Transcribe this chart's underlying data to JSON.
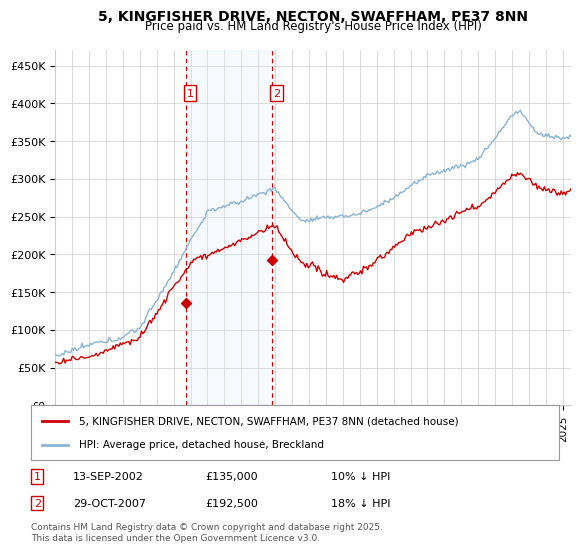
{
  "title": "5, KINGFISHER DRIVE, NECTON, SWAFFHAM, PE37 8NN",
  "subtitle": "Price paid vs. HM Land Registry's House Price Index (HPI)",
  "ylim": [
    0,
    470000
  ],
  "yticks": [
    0,
    50000,
    100000,
    150000,
    200000,
    250000,
    300000,
    350000,
    400000,
    450000
  ],
  "ytick_labels": [
    "£0",
    "£50K",
    "£100K",
    "£150K",
    "£200K",
    "£250K",
    "£300K",
    "£350K",
    "£400K",
    "£450K"
  ],
  "transaction1_date": "13-SEP-2002",
  "transaction1_price": 135000,
  "transaction1_hpi_diff": "10% ↓ HPI",
  "transaction2_date": "29-OCT-2007",
  "transaction2_price": 192500,
  "transaction2_hpi_diff": "18% ↓ HPI",
  "legend_line1": "5, KINGFISHER DRIVE, NECTON, SWAFFHAM, PE37 8NN (detached house)",
  "legend_line2": "HPI: Average price, detached house, Breckland",
  "footer": "Contains HM Land Registry data © Crown copyright and database right 2025.\nThis data is licensed under the Open Government Licence v3.0.",
  "hpi_color": "#8ab4d4",
  "price_color": "#cc0000",
  "shade_color": "#ddeeff",
  "vline_color": "#cc0000",
  "background_color": "#ffffff",
  "grid_color": "#cccccc",
  "t1_year": 2002.71,
  "t2_year": 2007.83
}
